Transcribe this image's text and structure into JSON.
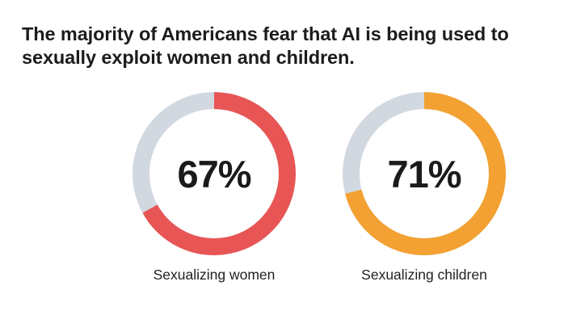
{
  "title": "The majority of Americans fear that AI is being used to sexually exploit women and children.",
  "chart_data": [
    {
      "type": "pie",
      "style": "donut",
      "label": "Sexualizing women",
      "value_label": "67%",
      "value": 67,
      "max": 100,
      "color": "#e85555",
      "remainder_color": "#d2d8e0"
    },
    {
      "type": "pie",
      "style": "donut",
      "label": "Sexualizing children",
      "value_label": "71%",
      "value": 71,
      "max": 100,
      "color": "#f3a132",
      "remainder_color": "#d2d8e0"
    }
  ]
}
